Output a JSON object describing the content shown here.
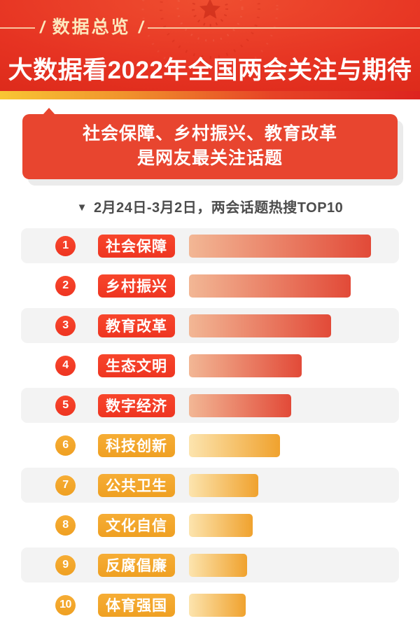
{
  "header": {
    "kicker": "数据总览",
    "slash": "/",
    "title": "大数据看2022年全国两会关注与期待"
  },
  "banner": {
    "line1": "社会保障、乡村振兴、教育改革",
    "line2": "是网友最关注话题"
  },
  "subtitle": {
    "marker": "▼",
    "text": "2月24日-3月2日，两会话题热搜TOP10"
  },
  "rows": [
    {
      "rank": "1",
      "label": "社会保障",
      "value": 100,
      "theme": "red"
    },
    {
      "rank": "2",
      "label": "乡村振兴",
      "value": 89,
      "theme": "red"
    },
    {
      "rank": "3",
      "label": "教育改革",
      "value": 78,
      "theme": "red"
    },
    {
      "rank": "4",
      "label": "生态文明",
      "value": 62,
      "theme": "red"
    },
    {
      "rank": "5",
      "label": "数字经济",
      "value": 56,
      "theme": "red"
    },
    {
      "rank": "6",
      "label": "科技创新",
      "value": 50,
      "theme": "gold"
    },
    {
      "rank": "7",
      "label": "公共卫生",
      "value": 38,
      "theme": "gold"
    },
    {
      "rank": "8",
      "label": "文化自信",
      "value": 35,
      "theme": "gold"
    },
    {
      "rank": "9",
      "label": "反腐倡廉",
      "value": 32,
      "theme": "gold"
    },
    {
      "rank": "10",
      "label": "体育强国",
      "value": 31,
      "theme": "gold"
    }
  ],
  "chart_data": {
    "type": "bar",
    "orientation": "horizontal",
    "title": "2月24日-3月2日，两会话题热搜TOP10",
    "subtitle_context": "社会保障、乡村振兴、教育改革 是网友最关注话题",
    "categories": [
      "社会保障",
      "乡村振兴",
      "教育改革",
      "生态文明",
      "数字经济",
      "科技创新",
      "公共卫生",
      "文化自信",
      "反腐倡廉",
      "体育强国"
    ],
    "values": [
      100,
      89,
      78,
      62,
      56,
      50,
      38,
      35,
      32,
      31
    ],
    "value_note": "bars carry no numeric labels; values are relative bar lengths, % of longest bar",
    "xlabel": "",
    "ylabel": "",
    "xlim": [
      0,
      100
    ],
    "grid": false,
    "legend": "none",
    "series_colors": {
      "ranks_1_to_5": "#e24a38",
      "ranks_6_to_10": "#f0a22e"
    }
  },
  "colors": {
    "header_red": "#e63322",
    "strip_gradient_start": "#f8c634",
    "strip_gradient_end": "#dd2420",
    "banner_red": "#e8452f",
    "kicker_cream": "#fce7bd",
    "accent_red": "#f03a25",
    "accent_gold": "#f2a62b",
    "row_stripe_gray": "#f3f3f3",
    "subtitle_gray": "#4c4c4c"
  }
}
